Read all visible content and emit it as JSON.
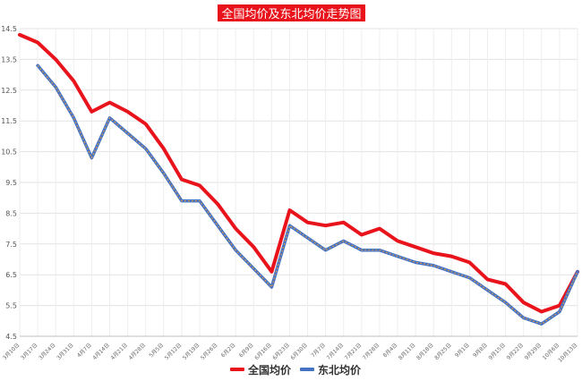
{
  "chart_data": {
    "type": "line",
    "title": "全国均价及东北均价走势图",
    "xlabel": "",
    "ylabel": "",
    "ylim": [
      4.5,
      14.5
    ],
    "yticks": [
      4.5,
      5.5,
      6.5,
      7.5,
      8.5,
      9.5,
      10.5,
      11.5,
      12.5,
      13.5,
      14.5
    ],
    "grid": true,
    "legend_position": "bottom-center",
    "categories": [
      "3月10日",
      "3月17日",
      "3月24日",
      "3月31日",
      "4月7日",
      "4月14日",
      "4月21日",
      "4月28日",
      "5月5日",
      "5月12日",
      "5月19日",
      "5月26日",
      "6月2日",
      "6月9日",
      "6月16日",
      "6月23日",
      "6月30日",
      "7月7日",
      "7月14日",
      "7月21日",
      "7月28日",
      "8月4日",
      "8月11日",
      "8月18日",
      "8月25日",
      "9月1日",
      "9月8日",
      "9月15日",
      "9月22日",
      "9月29日",
      "10月6日",
      "10月13日"
    ],
    "series": [
      {
        "name": "全国均价",
        "color": "#e8131b",
        "values": [
          14.3,
          14.05,
          13.5,
          12.8,
          11.8,
          12.1,
          11.8,
          11.4,
          10.6,
          9.6,
          9.4,
          8.8,
          8.0,
          7.4,
          6.6,
          8.6,
          8.2,
          8.1,
          8.2,
          7.8,
          8.0,
          7.6,
          7.4,
          7.2,
          7.1,
          6.9,
          6.35,
          6.2,
          5.6,
          5.3,
          5.5,
          6.6
        ]
      },
      {
        "name": "东北均价",
        "color": "#4472c4",
        "values": [
          null,
          13.3,
          12.6,
          11.6,
          10.3,
          11.6,
          11.1,
          10.6,
          9.8,
          8.9,
          8.9,
          8.1,
          7.3,
          6.7,
          6.1,
          8.1,
          7.7,
          7.3,
          7.6,
          7.3,
          7.3,
          7.1,
          6.9,
          6.8,
          6.6,
          6.4,
          6.0,
          5.6,
          5.1,
          4.9,
          5.3,
          6.6
        ]
      }
    ]
  }
}
